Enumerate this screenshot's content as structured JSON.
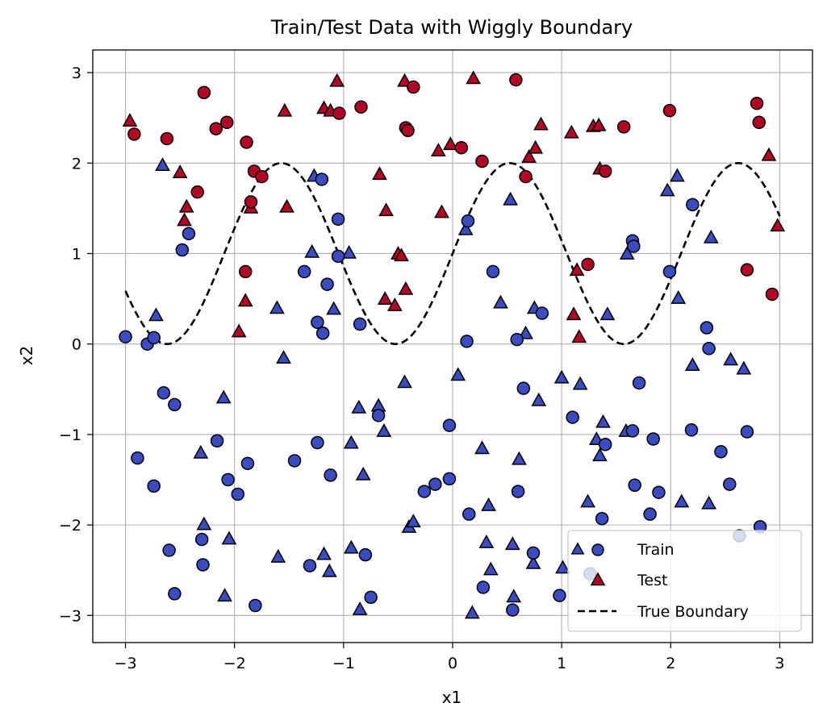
{
  "chart_data": {
    "type": "scatter",
    "title": "Train/Test Data with Wiggly Boundary",
    "xlabel": "x1",
    "ylabel": "x2",
    "xlim": [
      -3.3,
      3.3
    ],
    "ylim": [
      -3.3,
      3.25
    ],
    "xticks": [
      -3,
      -2,
      -1,
      0,
      1,
      2,
      3
    ],
    "yticks": [
      -3,
      -2,
      -1,
      0,
      1,
      2,
      3
    ],
    "xtick_labels": [
      "−3",
      "−2",
      "−1",
      "0",
      "1",
      "2",
      "3"
    ],
    "ytick_labels": [
      "−3",
      "−2",
      "−1",
      "0",
      "1",
      "2",
      "3"
    ],
    "grid": true,
    "legend_position": "lower-right",
    "colors": {
      "class_low": "#3b4cc0",
      "class_high": "#b40426",
      "edge": "#000000",
      "boundary": "#000000",
      "grid": "#b0b0b0"
    },
    "series": [
      {
        "name": "Train",
        "marker": "circle",
        "points": [
          [
            -2.92,
            2.32,
            1
          ],
          [
            -2.62,
            2.27,
            1
          ],
          [
            -2.28,
            2.78,
            1
          ],
          [
            -2.17,
            2.38,
            1
          ],
          [
            -2.07,
            2.45,
            1
          ],
          [
            -1.89,
            2.23,
            1
          ],
          [
            -1.82,
            1.91,
            1
          ],
          [
            -1.75,
            1.85,
            1
          ],
          [
            -1.85,
            1.57,
            1
          ],
          [
            -2.34,
            1.68,
            1
          ],
          [
            -1.04,
            2.55,
            1
          ],
          [
            -0.84,
            2.62,
            1
          ],
          [
            -0.43,
            2.39,
            1
          ],
          [
            -0.41,
            2.36,
            1
          ],
          [
            -0.36,
            2.84,
            1
          ],
          [
            0.08,
            2.17,
            1
          ],
          [
            0.27,
            2.02,
            1
          ],
          [
            0.58,
            2.92,
            1
          ],
          [
            0.67,
            1.85,
            1
          ],
          [
            1.4,
            1.91,
            1
          ],
          [
            1.57,
            2.4,
            1
          ],
          [
            1.99,
            2.58,
            1
          ],
          [
            2.79,
            2.66,
            1
          ],
          [
            2.81,
            2.45,
            1
          ],
          [
            -1.9,
            0.8,
            1
          ],
          [
            1.24,
            0.88,
            1
          ],
          [
            2.7,
            0.82,
            1
          ],
          [
            2.93,
            0.55,
            1
          ],
          [
            -3.0,
            0.08,
            0
          ],
          [
            -2.8,
            0.0,
            0
          ],
          [
            -2.74,
            0.07,
            0
          ],
          [
            -2.48,
            1.04,
            0
          ],
          [
            -2.42,
            1.22,
            0
          ],
          [
            -1.2,
            1.82,
            0
          ],
          [
            -1.05,
            1.38,
            0
          ],
          [
            -1.15,
            0.66,
            0
          ],
          [
            -1.05,
            0.97,
            0
          ],
          [
            -1.36,
            0.8,
            0
          ],
          [
            -1.24,
            0.24,
            0
          ],
          [
            -1.19,
            0.12,
            0
          ],
          [
            -0.85,
            0.22,
            0
          ],
          [
            0.14,
            1.36,
            0
          ],
          [
            0.13,
            0.03,
            0
          ],
          [
            0.37,
            0.8,
            0
          ],
          [
            0.59,
            0.05,
            0
          ],
          [
            0.82,
            0.34,
            0
          ],
          [
            1.65,
            1.14,
            0
          ],
          [
            1.66,
            1.08,
            0
          ],
          [
            1.99,
            0.8,
            0
          ],
          [
            2.2,
            1.54,
            0
          ],
          [
            2.33,
            0.18,
            0
          ],
          [
            2.35,
            -0.05,
            0
          ],
          [
            1.71,
            -0.43,
            0
          ],
          [
            0.65,
            -0.49,
            0
          ],
          [
            -2.65,
            -0.54,
            0
          ],
          [
            -2.55,
            -0.67,
            0
          ],
          [
            -2.89,
            -1.26,
            0
          ],
          [
            -2.74,
            -1.57,
            0
          ],
          [
            -2.16,
            -1.07,
            0
          ],
          [
            -2.06,
            -1.5,
            0
          ],
          [
            -1.97,
            -1.66,
            0
          ],
          [
            -1.88,
            -1.32,
            0
          ],
          [
            -1.45,
            -1.29,
            0
          ],
          [
            -1.24,
            -1.09,
            0
          ],
          [
            -1.12,
            -1.45,
            0
          ],
          [
            -0.68,
            -0.79,
            0
          ],
          [
            -0.03,
            -0.9,
            0
          ],
          [
            -0.26,
            -1.63,
            0
          ],
          [
            -0.16,
            -1.55,
            0
          ],
          [
            -0.03,
            -1.49,
            0
          ],
          [
            0.15,
            -1.88,
            0
          ],
          [
            0.6,
            -1.63,
            0
          ],
          [
            1.1,
            -0.81,
            0
          ],
          [
            1.4,
            -1.11,
            0
          ],
          [
            1.37,
            -1.93,
            0
          ],
          [
            1.65,
            -0.96,
            0
          ],
          [
            1.84,
            -1.05,
            0
          ],
          [
            1.67,
            -1.56,
            0
          ],
          [
            1.89,
            -1.64,
            0
          ],
          [
            1.81,
            -1.88,
            0
          ],
          [
            2.19,
            -0.95,
            0
          ],
          [
            2.46,
            -1.19,
            0
          ],
          [
            2.54,
            -1.55,
            0
          ],
          [
            2.7,
            -0.97,
            0
          ],
          [
            -2.3,
            -2.16,
            0
          ],
          [
            -2.29,
            -2.44,
            0
          ],
          [
            -2.6,
            -2.28,
            0
          ],
          [
            -2.55,
            -2.76,
            0
          ],
          [
            -1.81,
            -2.89,
            0
          ],
          [
            -1.31,
            -2.45,
            0
          ],
          [
            -0.8,
            -2.33,
            0
          ],
          [
            -0.75,
            -2.8,
            0
          ],
          [
            0.28,
            -2.69,
            0
          ],
          [
            0.55,
            -2.94,
            0
          ],
          [
            0.74,
            -2.31,
            0
          ],
          [
            0.98,
            -2.78,
            0
          ],
          [
            1.26,
            -2.54,
            0
          ],
          [
            2.63,
            -2.12,
            0
          ],
          [
            2.82,
            -2.02,
            0
          ]
        ]
      },
      {
        "name": "Test",
        "marker": "triangle",
        "points": [
          [
            -2.96,
            2.46,
            1
          ],
          [
            -2.5,
            1.89,
            1
          ],
          [
            -2.46,
            1.36,
            1
          ],
          [
            -2.44,
            1.51,
            1
          ],
          [
            -1.85,
            1.5,
            1
          ],
          [
            -1.52,
            1.51,
            1
          ],
          [
            -1.54,
            2.57,
            1
          ],
          [
            -1.18,
            2.6,
            1
          ],
          [
            -1.12,
            2.57,
            1
          ],
          [
            -1.06,
            2.9,
            1
          ],
          [
            -0.67,
            1.87,
            1
          ],
          [
            -0.61,
            1.47,
            1
          ],
          [
            -0.5,
            0.99,
            1
          ],
          [
            -0.47,
            0.97,
            1
          ],
          [
            -0.43,
            0.6,
            1
          ],
          [
            -0.53,
            0.42,
            1
          ],
          [
            -0.62,
            0.49,
            1
          ],
          [
            -0.44,
            2.9,
            1
          ],
          [
            -0.13,
            2.13,
            1
          ],
          [
            -0.1,
            1.45,
            1
          ],
          [
            -0.02,
            2.2,
            1
          ],
          [
            0.19,
            2.93,
            1
          ],
          [
            0.7,
            2.06,
            1
          ],
          [
            0.76,
            2.16,
            1
          ],
          [
            0.81,
            2.42,
            1
          ],
          [
            1.09,
            2.33,
            1
          ],
          [
            1.29,
            2.4,
            1
          ],
          [
            1.34,
            2.41,
            1
          ],
          [
            1.35,
            1.93,
            1
          ],
          [
            1.14,
            0.81,
            1
          ],
          [
            1.16,
            0.07,
            1
          ],
          [
            1.11,
            0.32,
            1
          ],
          [
            2.9,
            2.08,
            1
          ],
          [
            2.98,
            1.3,
            1
          ],
          [
            -1.96,
            0.13,
            1
          ],
          [
            -1.9,
            0.47,
            1
          ],
          [
            -2.72,
            0.31,
            0
          ],
          [
            -2.66,
            1.97,
            0
          ],
          [
            -1.27,
            1.85,
            0
          ],
          [
            -1.29,
            1.01,
            0
          ],
          [
            -0.95,
            1.0,
            0
          ],
          [
            -1.09,
            0.38,
            0
          ],
          [
            -1.61,
            0.39,
            0
          ],
          [
            -1.55,
            -0.16,
            0
          ],
          [
            -2.1,
            -0.6,
            0
          ],
          [
            -0.44,
            -0.43,
            0
          ],
          [
            0.05,
            -0.35,
            0
          ],
          [
            0.12,
            1.26,
            0
          ],
          [
            0.53,
            1.59,
            0
          ],
          [
            0.44,
            0.45,
            0
          ],
          [
            0.67,
            0.11,
            0
          ],
          [
            0.75,
            0.39,
            0
          ],
          [
            0.79,
            -0.63,
            0
          ],
          [
            1.0,
            -0.38,
            0
          ],
          [
            1.17,
            -0.45,
            0
          ],
          [
            1.42,
            0.32,
            0
          ],
          [
            1.6,
            0.99,
            0
          ],
          [
            1.97,
            1.69,
            0
          ],
          [
            2.06,
            1.85,
            0
          ],
          [
            2.07,
            0.5,
            0
          ],
          [
            2.37,
            1.17,
            0
          ],
          [
            2.2,
            -0.24,
            0
          ],
          [
            2.55,
            -0.18,
            0
          ],
          [
            2.67,
            -0.28,
            0
          ],
          [
            -0.86,
            -0.71,
            0
          ],
          [
            -0.68,
            -0.69,
            0
          ],
          [
            -0.63,
            -0.97,
            0
          ],
          [
            -0.93,
            -1.1,
            0
          ],
          [
            -0.82,
            -1.45,
            0
          ],
          [
            0.27,
            -1.16,
            0
          ],
          [
            0.61,
            -1.28,
            0
          ],
          [
            1.32,
            -1.06,
            0
          ],
          [
            1.35,
            -1.24,
            0
          ],
          [
            1.38,
            -0.87,
            0
          ],
          [
            1.59,
            -0.97,
            0
          ],
          [
            -2.31,
            -1.21,
            0
          ],
          [
            -2.28,
            -2.0,
            0
          ],
          [
            -2.05,
            -2.16,
            0
          ],
          [
            -2.09,
            -2.79,
            0
          ],
          [
            -1.6,
            -2.36,
            0
          ],
          [
            -1.18,
            -2.33,
            0
          ],
          [
            -1.13,
            -2.52,
            0
          ],
          [
            -0.93,
            -2.26,
            0
          ],
          [
            -0.85,
            -2.94,
            0
          ],
          [
            -0.4,
            -2.03,
            0
          ],
          [
            -0.36,
            -1.97,
            0
          ],
          [
            0.18,
            -2.98,
            0
          ],
          [
            0.31,
            -2.2,
            0
          ],
          [
            0.33,
            -1.79,
            0
          ],
          [
            0.35,
            -2.5,
            0
          ],
          [
            0.55,
            -2.22,
            0
          ],
          [
            0.56,
            -2.8,
            0
          ],
          [
            0.74,
            -2.43,
            0
          ],
          [
            1.01,
            -2.48,
            0
          ],
          [
            1.24,
            -1.75,
            0
          ],
          [
            2.1,
            -1.75,
            0
          ],
          [
            2.35,
            -1.77,
            0
          ]
        ]
      },
      {
        "name": "True Boundary",
        "type": "line",
        "style": "dashed",
        "formula": "x2 = 1 + sin(3·x1)",
        "x_range": [
          -3,
          3
        ]
      }
    ]
  }
}
